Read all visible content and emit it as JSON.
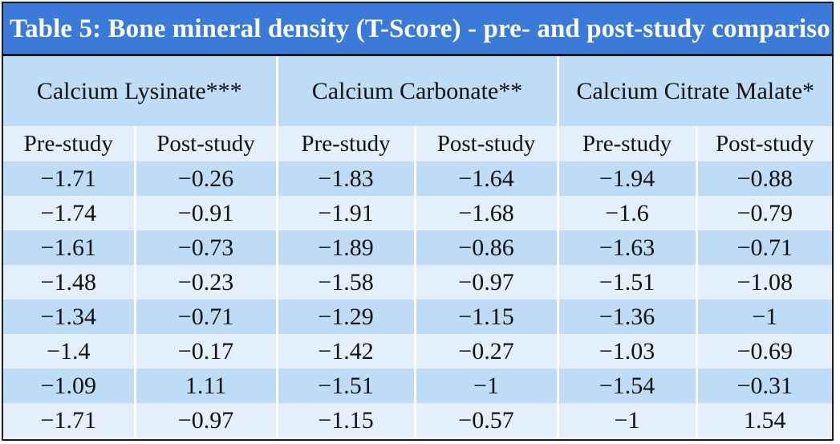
{
  "title": "Table 5: Bone mineral density (T-Score) - pre- and post-study compariso",
  "groups": [
    {
      "label": "Calcium Lysinate***"
    },
    {
      "label": "Calcium Carbonate**"
    },
    {
      "label": "Calcium Citrate Malate*"
    }
  ],
  "subheaders": [
    "Pre-study",
    "Post-study",
    "Pre-study",
    "Post-study",
    "Pre-study",
    "Post-study"
  ],
  "rows": [
    [
      "−1.71",
      "−0.26",
      "−1.83",
      "−1.64",
      "−1.94",
      "−0.88"
    ],
    [
      "−1.74",
      "−0.91",
      "−1.91",
      "−1.68",
      "−1.6",
      "−0.79"
    ],
    [
      "−1.61",
      "−0.73",
      "−1.89",
      "−0.86",
      "−1.63",
      "−0.71"
    ],
    [
      "−1.48",
      "−0.23",
      "−1.58",
      "−0.97",
      "−1.51",
      "−1.08"
    ],
    [
      "−1.34",
      "−0.71",
      "−1.29",
      "−1.15",
      "−1.36",
      "−1"
    ],
    [
      "−1.4",
      "−0.17",
      "−1.42",
      "−0.27",
      "−1.03",
      "−0.69"
    ],
    [
      "−1.09",
      "1.11",
      "−1.51",
      "−1",
      "−1.54",
      "−0.31"
    ],
    [
      "−1.71",
      "−0.97",
      "−1.15",
      "−0.57",
      "−1",
      "1.54"
    ]
  ],
  "colors": {
    "title_bg": "#3a7ad8",
    "title_text": "#ffffff",
    "row_dark": "#bedcf6",
    "row_light": "#e3f0fb",
    "border": "#1c1c1c"
  }
}
